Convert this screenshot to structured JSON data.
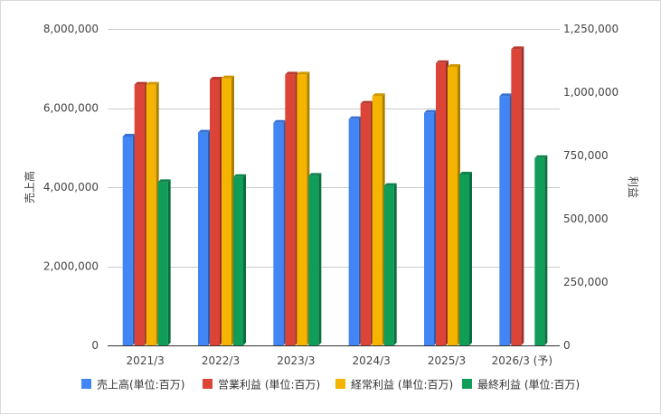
{
  "chart_data": {
    "type": "bar",
    "categories": [
      "2021/3",
      "2022/3",
      "2023/3",
      "2024/3",
      "2025/3",
      "2026/3 (予)"
    ],
    "y_left": {
      "label": "売上高",
      "min": 0,
      "max": 8000000,
      "ticks": [
        0,
        2000000,
        4000000,
        6000000,
        8000000
      ],
      "tick_labels": [
        "0",
        "2,000,000",
        "4,000,000",
        "6,000,000",
        "8,000,000"
      ]
    },
    "y_right": {
      "label": "利益",
      "min": 0,
      "max": 1250000,
      "ticks": [
        0,
        250000,
        500000,
        750000,
        1000000,
        1250000
      ],
      "tick_labels": [
        "0",
        "250,000",
        "500,000",
        "750,000",
        "1,000,000",
        "1,250,000"
      ]
    },
    "series": [
      {
        "name": "売上高(単位:百万)",
        "color": "#4285f4",
        "axis": "left",
        "values": [
          5280000,
          5380000,
          5630000,
          5720000,
          5880000,
          6300000
        ]
      },
      {
        "name": "営業利益 (単位:百万)",
        "color": "#db4437",
        "axis": "right",
        "values": [
          1030000,
          1050000,
          1070000,
          955000,
          1115000,
          1170000
        ]
      },
      {
        "name": "経常利益 (単位:百万)",
        "color": "#f4b400",
        "axis": "right",
        "values": [
          1030000,
          1055000,
          1070000,
          985000,
          1100000,
          null
        ]
      },
      {
        "name": "最終利益 (単位:百万)",
        "color": "#0f9d58",
        "axis": "right",
        "values": [
          645000,
          665000,
          670000,
          630000,
          675000,
          740000
        ]
      }
    ],
    "legend_position": "bottom",
    "grid": true
  }
}
